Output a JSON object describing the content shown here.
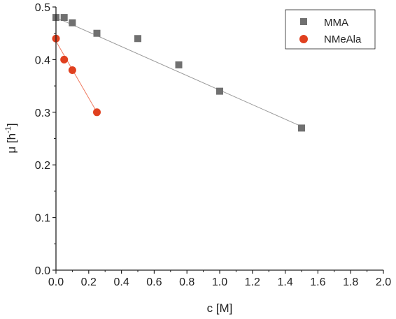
{
  "chart_data": {
    "type": "scatter",
    "xlabel": "c [M]",
    "ylabel_main": "μ [h",
    "ylabel_sup": "-1",
    "ylabel_close": "]",
    "xlim": [
      0.0,
      2.0
    ],
    "ylim": [
      0.0,
      0.5
    ],
    "xticks": [
      "0.0",
      "0.2",
      "0.4",
      "0.6",
      "0.8",
      "1.0",
      "1.2",
      "1.4",
      "1.6",
      "1.8",
      "2.0"
    ],
    "yticks": [
      "0.0",
      "0.1",
      "0.2",
      "0.3",
      "0.4",
      "0.5"
    ],
    "grid": false,
    "legend_position": "top-right",
    "series": [
      {
        "name": "MMA",
        "marker": "square",
        "color": "#707070",
        "line_color": "#9a9a9a",
        "x": [
          0.0,
          0.05,
          0.1,
          0.25,
          0.5,
          0.75,
          1.0,
          1.5
        ],
        "y": [
          0.48,
          0.48,
          0.47,
          0.45,
          0.44,
          0.39,
          0.34,
          0.27
        ],
        "fit": [
          [
            0.0,
            0.48
          ],
          [
            1.5,
            0.273
          ]
        ]
      },
      {
        "name": "NMeAla",
        "marker": "circle",
        "color": "#e0401f",
        "line_color": "#ef7a60",
        "x": [
          0.0,
          0.05,
          0.1,
          0.25
        ],
        "y": [
          0.44,
          0.4,
          0.38,
          0.3
        ],
        "fit": [
          [
            0.0,
            0.435
          ],
          [
            0.25,
            0.3
          ]
        ]
      }
    ]
  }
}
